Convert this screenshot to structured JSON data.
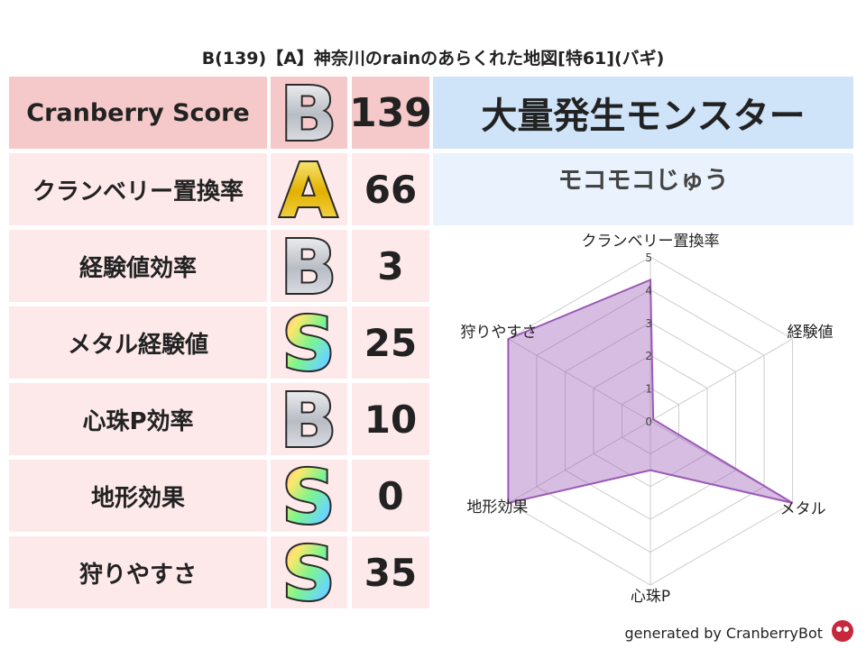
{
  "title": "B(139)【A】神奈川のrainのあらくれた地図[特61](バギ)",
  "table": {
    "rows": [
      {
        "label": "Cranberry Score",
        "grade": "B",
        "value": 139
      },
      {
        "label": "クランベリー置換率",
        "grade": "A",
        "value": 66
      },
      {
        "label": "経験値効率",
        "grade": "B",
        "value": 3
      },
      {
        "label": "メタル経験値",
        "grade": "S",
        "value": 25
      },
      {
        "label": "心珠P効率",
        "grade": "B",
        "value": 10
      },
      {
        "label": "地形効果",
        "grade": "S",
        "value": 0
      },
      {
        "label": "狩りやすさ",
        "grade": "S",
        "value": 35
      }
    ]
  },
  "monster": {
    "header": "大量発生モンスター",
    "name": "モコモコじゅう"
  },
  "chart_data": {
    "type": "radar",
    "categories": [
      "クランベリー置換率",
      "経験値",
      "メタル",
      "心珠P",
      "地形効果",
      "狩りやすさ"
    ],
    "values": [
      4.3,
      0.1,
      5,
      1.5,
      5,
      5
    ],
    "color": "#9b59b6",
    "rlim": [
      0,
      5
    ],
    "rticks": [
      0,
      1,
      2,
      3,
      4,
      5
    ]
  },
  "footer": "generated by CranberryBot"
}
